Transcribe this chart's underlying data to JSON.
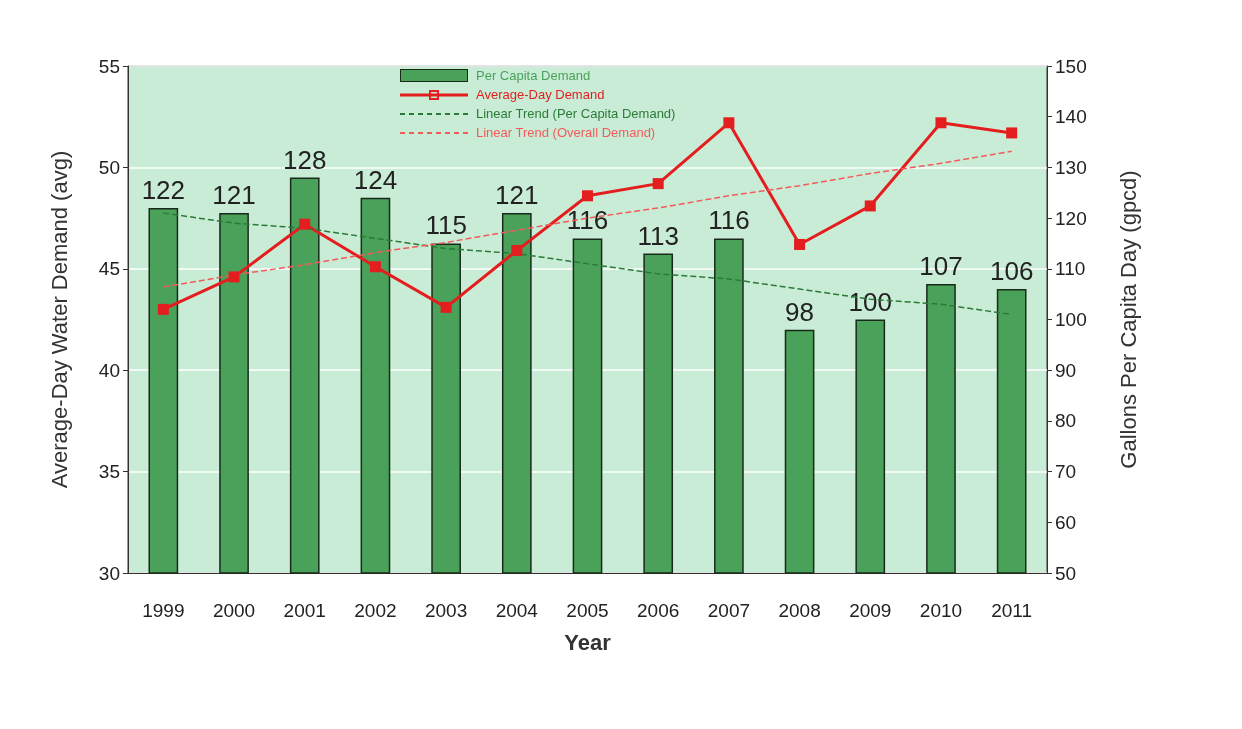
{
  "chart_data": {
    "type": "bar",
    "xlabel": "Year",
    "ylabel": "Average-Day Water Demand (avg)",
    "y2label": "Gallons Per Capita Day (gpcd)",
    "categories": [
      "1999",
      "2000",
      "2001",
      "2002",
      "2003",
      "2004",
      "2005",
      "2006",
      "2007",
      "2008",
      "2009",
      "2010",
      "2011"
    ],
    "series": [
      {
        "name": "Per Capita Demand",
        "axis": "y2",
        "color": "#4aa25a",
        "values": [
          122,
          121,
          128,
          124,
          115,
          121,
          116,
          113,
          116,
          98,
          100,
          107,
          106
        ],
        "data_labels": true
      },
      {
        "name": "Average-Day Demand",
        "type": "line",
        "color": "#e41e1e",
        "marker": "square",
        "line_style": "solid",
        "values": [
          43.0,
          44.6,
          47.2,
          45.1,
          43.1,
          45.9,
          48.6,
          49.2,
          52.2,
          46.2,
          48.1,
          52.2,
          51.7
        ]
      },
      {
        "name": "Linear Trend (Per Capita Demand)",
        "type": "line",
        "axis": "y2",
        "color": "#2a7a38",
        "marker": "none",
        "line_style": "dashed",
        "values": [
          121,
          119,
          118,
          116,
          114,
          113,
          111,
          109,
          108,
          106,
          104,
          103,
          101
        ]
      },
      {
        "name": "Linear Trend (Overall Demand)",
        "type": "line",
        "color": "#f45a5a",
        "marker": "none",
        "line_style": "dashed",
        "values": [
          44.1,
          44.7,
          45.2,
          45.8,
          46.3,
          46.9,
          47.5,
          48.0,
          48.6,
          49.1,
          49.7,
          50.2,
          50.8
        ]
      }
    ],
    "ylim": [
      30,
      55
    ],
    "yticks": [
      30,
      35,
      40,
      45,
      50,
      55
    ],
    "y2lim": [
      50,
      150
    ],
    "y2ticks": [
      50,
      60,
      70,
      80,
      90,
      100,
      110,
      120,
      130,
      140,
      150
    ],
    "grid": "y",
    "legend": "top"
  }
}
